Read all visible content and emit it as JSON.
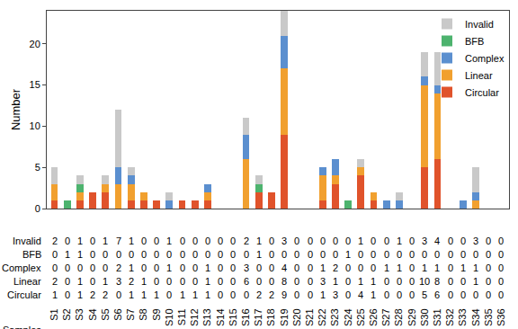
{
  "chart_data": {
    "type": "bar",
    "stacked": true,
    "y_label": "Number",
    "x_label": "Samples",
    "categories": [
      "S1",
      "S2",
      "S3",
      "S4",
      "S5",
      "S6",
      "S7",
      "S8",
      "S9",
      "S10",
      "S11",
      "S12",
      "S13",
      "S14",
      "S15",
      "S16",
      "S17",
      "S18",
      "S19",
      "S20",
      "S21",
      "S22",
      "S23",
      "S24",
      "S25",
      "S26",
      "S27",
      "S28",
      "S29",
      "S30",
      "S31",
      "S32",
      "S33",
      "S34",
      "S35",
      "S36"
    ],
    "series": [
      {
        "name": "Circular",
        "color": "#e0532b",
        "values": [
          1,
          0,
          1,
          2,
          2,
          0,
          1,
          1,
          1,
          0,
          1,
          1,
          1,
          0,
          0,
          0,
          2,
          2,
          9,
          0,
          0,
          1,
          3,
          0,
          4,
          1,
          0,
          0,
          0,
          5,
          6,
          0,
          0,
          0,
          0,
          0
        ]
      },
      {
        "name": "Linear",
        "color": "#f1a02f",
        "values": [
          2,
          0,
          1,
          0,
          1,
          3,
          2,
          1,
          0,
          0,
          0,
          0,
          1,
          0,
          0,
          6,
          0,
          0,
          8,
          0,
          0,
          3,
          1,
          0,
          1,
          1,
          0,
          0,
          0,
          10,
          8,
          0,
          0,
          1,
          0,
          0
        ]
      },
      {
        "name": "Complex",
        "color": "#5b8fcf",
        "values": [
          0,
          0,
          0,
          0,
          0,
          2,
          1,
          0,
          0,
          1,
          0,
          0,
          1,
          0,
          0,
          3,
          0,
          0,
          4,
          0,
          0,
          1,
          2,
          0,
          0,
          0,
          1,
          1,
          0,
          1,
          1,
          0,
          1,
          1,
          0,
          0
        ]
      },
      {
        "name": "BFB",
        "color": "#4db36e",
        "values": [
          0,
          1,
          1,
          0,
          0,
          0,
          0,
          0,
          0,
          0,
          0,
          0,
          0,
          0,
          0,
          0,
          1,
          0,
          0,
          0,
          0,
          0,
          0,
          1,
          0,
          0,
          0,
          0,
          0,
          0,
          0,
          0,
          0,
          0,
          0,
          0
        ]
      },
      {
        "name": "Invalid",
        "color": "#c9c9c9",
        "values": [
          2,
          0,
          1,
          0,
          1,
          7,
          1,
          0,
          0,
          1,
          0,
          0,
          0,
          0,
          0,
          2,
          1,
          0,
          3,
          0,
          0,
          0,
          0,
          0,
          1,
          0,
          0,
          1,
          0,
          3,
          4,
          0,
          0,
          3,
          0,
          0
        ]
      }
    ],
    "ylim": [
      0,
      24
    ],
    "yticks": [
      0,
      5,
      10,
      15,
      20
    ],
    "grid": false,
    "legend": "top right",
    "data_labels": true
  }
}
